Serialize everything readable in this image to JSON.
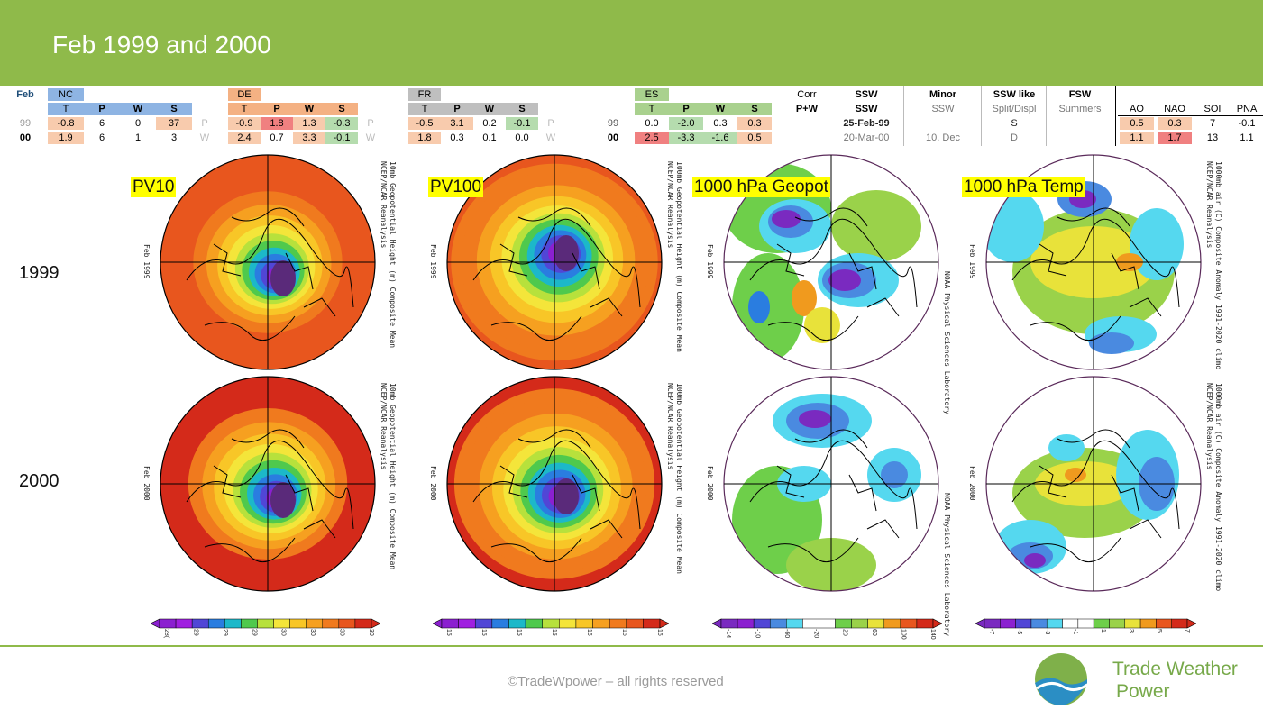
{
  "header": {
    "title": "Feb 1999 and 2000"
  },
  "tables": {
    "row_labels": [
      "99",
      "00"
    ],
    "feb_label": "Feb",
    "regions": [
      {
        "name": "NC",
        "cols": [
          "T",
          "P",
          "W",
          "S"
        ],
        "rows": [
          [
            "-0.8",
            "6",
            "0",
            "37"
          ],
          [
            "1.9",
            "6",
            "1",
            "3"
          ]
        ],
        "side": [
          "P",
          "W"
        ]
      },
      {
        "name": "DE",
        "cols": [
          "T",
          "P",
          "W",
          "S"
        ],
        "rows": [
          [
            "-0.9",
            "1.8",
            "1.3",
            "-0.3"
          ],
          [
            "2.4",
            "0.7",
            "3.3",
            "-0.1"
          ]
        ],
        "side": [
          "P",
          "W"
        ]
      },
      {
        "name": "FR",
        "cols": [
          "T",
          "P",
          "W",
          "S"
        ],
        "rows": [
          [
            "-0.5",
            "3.1",
            "0.2",
            "-0.1"
          ],
          [
            "1.8",
            "0.3",
            "0.1",
            "0.0"
          ]
        ],
        "side": [
          "P",
          "W"
        ]
      },
      {
        "name": "ES",
        "cols": [
          "T",
          "P",
          "W",
          "S"
        ],
        "rows": [
          [
            "0.0",
            "-2.0",
            "0.3",
            "0.3"
          ],
          [
            "2.5",
            "-3.3",
            "-1.6",
            "0.5"
          ]
        ]
      }
    ],
    "corr": {
      "label1": "Corr",
      "label2": "P+W"
    },
    "ssw": {
      "headers": [
        "SSW",
        "Minor",
        "SSW like",
        "FSW"
      ],
      "subheaders": [
        "",
        "SSW",
        "Split/Displ",
        "Summers"
      ],
      "rows": [
        [
          "25-Feb-99",
          "",
          "S",
          ""
        ],
        [
          "20-Mar-00",
          "10. Dec",
          "D",
          ""
        ]
      ]
    },
    "indices": {
      "cols": [
        "AO",
        "NAO",
        "SOI",
        "PNA"
      ],
      "rows": [
        [
          "0.5",
          "0.3",
          "7",
          "-0.1"
        ],
        [
          "1.1",
          "1.7",
          "13",
          "1.1"
        ]
      ]
    }
  },
  "maps": {
    "row_labels": [
      "1999",
      "2000"
    ],
    "panel_labels": [
      "PV10",
      "PV100",
      "1000 hPa Geopot",
      "1000 hPa Temp"
    ],
    "side_texts": [
      "10mb Geopotential Height (m) Composite Mean",
      "100mb Geopotential Height (m) Composite Mean",
      "NOAA Physical Sciences Laboratory",
      "1000mb air (C) Composite Anomaly 1991-2020 climo"
    ],
    "reanalysis": "NCEP/NCAR Reanalysis",
    "psl": "NOAA Physical Sciences Laboratory",
    "date_labels": [
      "Feb 1999",
      "Feb 2000"
    ]
  },
  "colorbars": [
    {
      "ticks": [
        "28(",
        "29",
        "29",
        "29",
        "30",
        "30",
        "30",
        "30"
      ]
    },
    {
      "ticks": [
        "15",
        "15",
        "15",
        "15",
        "16",
        "16",
        "16"
      ]
    },
    {
      "ticks": [
        "-14",
        "-10",
        "-60",
        "-20",
        "20",
        "60",
        "100",
        "140"
      ]
    },
    {
      "ticks": [
        "-7",
        "-5",
        "-3",
        "-1",
        "1",
        "3",
        "5",
        "7"
      ]
    }
  ],
  "footer": {
    "copyright": "©TradeWpower – all rights reserved",
    "brand_line1": "Trade Weather",
    "brand_line2": "Power"
  },
  "colors": {
    "banner": "#8fba4a",
    "header_blue": "#8eb4e3",
    "header_orange": "#f4b183",
    "header_grey": "#bfbfbf",
    "header_green": "#a9d18e",
    "red": "#f08080",
    "pink": "#f8cbad",
    "green": "#b5dcae"
  }
}
